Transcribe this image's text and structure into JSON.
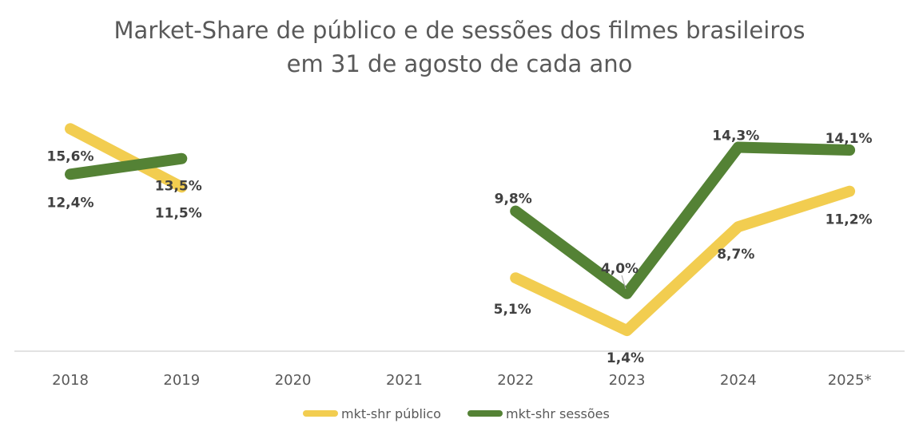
{
  "chart_data": {
    "type": "line",
    "title": "Market-Share de público e de sessões dos filmes brasileiros",
    "subtitle": "em 31 de agosto de cada ano",
    "categories": [
      "2018",
      "2019",
      "2020",
      "2021",
      "2022",
      "2023",
      "2024",
      "2025*"
    ],
    "series": [
      {
        "name": "mkt-shr público",
        "color": "#F2CD50",
        "values": [
          15.6,
          11.5,
          null,
          null,
          5.1,
          1.4,
          8.7,
          11.2
        ],
        "labels": [
          "15,6%",
          "11,5%",
          "",
          "",
          "5,1%",
          "1,4%",
          "8,7%",
          "11,2%"
        ]
      },
      {
        "name": "mkt-shr sessões",
        "color": "#548235",
        "values": [
          12.4,
          13.5,
          null,
          null,
          9.8,
          4.0,
          14.3,
          14.1
        ],
        "labels": [
          "12,4%",
          "13,5%",
          "",
          "",
          "9,8%",
          "4,0%",
          "14,3%",
          "14,1%"
        ]
      }
    ],
    "ylim": [
      0,
      16
    ],
    "grid": false,
    "legend": "bottom",
    "unit": "%"
  }
}
